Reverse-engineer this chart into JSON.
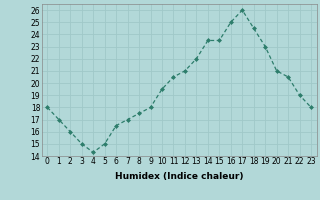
{
  "x": [
    0,
    1,
    2,
    3,
    4,
    5,
    6,
    7,
    8,
    9,
    10,
    11,
    12,
    13,
    14,
    15,
    16,
    17,
    18,
    19,
    20,
    21,
    22,
    23
  ],
  "y": [
    18,
    17,
    16,
    15,
    14.3,
    15,
    16.5,
    17,
    17.5,
    18,
    19.5,
    20.5,
    21,
    22,
    23.5,
    23.5,
    25,
    26,
    24.5,
    23,
    21,
    20.5,
    19,
    18
  ],
  "line_color": "#2d7d6b",
  "marker_color": "#2d7d6b",
  "bg_color": "#b2d8d8",
  "grid_color": "#a0c8c8",
  "xlabel": "Humidex (Indice chaleur)",
  "ylim": [
    14,
    26.5
  ],
  "xlim": [
    -0.5,
    23.5
  ],
  "yticks": [
    14,
    15,
    16,
    17,
    18,
    19,
    20,
    21,
    22,
    23,
    24,
    25,
    26
  ],
  "xticks": [
    0,
    1,
    2,
    3,
    4,
    5,
    6,
    7,
    8,
    9,
    10,
    11,
    12,
    13,
    14,
    15,
    16,
    17,
    18,
    19,
    20,
    21,
    22,
    23
  ],
  "tick_fontsize": 5.5,
  "label_fontsize": 6.5
}
